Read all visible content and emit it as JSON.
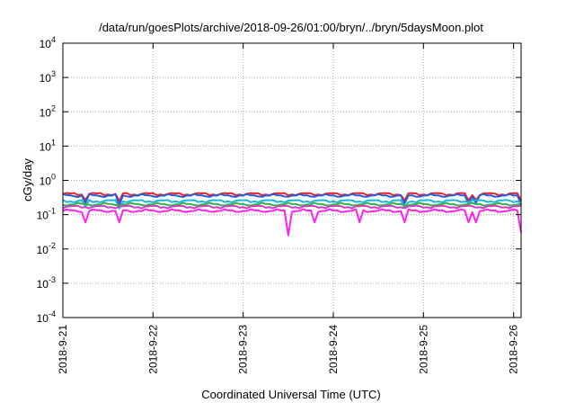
{
  "chart_data": {
    "type": "line",
    "title": "/data/run/goesPlots/archive/2018-09-26/01:00/bryn/../bryn/5daysMoon.plot",
    "xlabel": "Coordinated Universal Time (UTC)",
    "ylabel": "cGy/day",
    "y_scale": "log",
    "ylim": [
      0.0001,
      10000
    ],
    "xlim": [
      "2018-09-21T00:00",
      "2018-09-26T02:00"
    ],
    "grid": true,
    "y_ticks": [
      {
        "value": 0.0001,
        "base": "10",
        "exp": "-4"
      },
      {
        "value": 0.001,
        "base": "10",
        "exp": "-3"
      },
      {
        "value": 0.01,
        "base": "10",
        "exp": "-2"
      },
      {
        "value": 0.1,
        "base": "10",
        "exp": "-1"
      },
      {
        "value": 1,
        "base": "10",
        "exp": "0"
      },
      {
        "value": 10,
        "base": "10",
        "exp": "1"
      },
      {
        "value": 100,
        "base": "10",
        "exp": "2"
      },
      {
        "value": 1000,
        "base": "10",
        "exp": "3"
      },
      {
        "value": 10000,
        "base": "10",
        "exp": "4"
      }
    ],
    "x_ticks": [
      {
        "value": "2018-09-21T00:00",
        "label": "2018-9-21"
      },
      {
        "value": "2018-09-22T00:00",
        "label": "2018-9-22"
      },
      {
        "value": "2018-09-23T00:00",
        "label": "2018-9-23"
      },
      {
        "value": "2018-09-24T00:00",
        "label": "2018-9-24"
      },
      {
        "value": "2018-09-25T00:00",
        "label": "2018-9-25"
      },
      {
        "value": "2018-09-26T00:00",
        "label": "2018-9-26"
      }
    ],
    "series": [
      {
        "color": "#e8262b",
        "level": 0.4,
        "dips": [
          [
            "2018-09-21T06:00",
            0.27
          ],
          [
            "2018-09-21T15:00",
            0.25
          ],
          [
            "2018-09-24T19:00",
            0.26
          ],
          [
            "2018-09-25T12:00",
            0.26
          ],
          [
            "2018-09-25T14:00",
            0.27
          ],
          [
            "2018-09-26T02:00",
            0.26
          ]
        ]
      },
      {
        "color": "#2a5ad8",
        "level": 0.36,
        "dips": [
          [
            "2018-09-21T06:00",
            0.22
          ],
          [
            "2018-09-21T15:00",
            0.19
          ],
          [
            "2018-09-24T19:00",
            0.21
          ],
          [
            "2018-09-25T12:00",
            0.21
          ],
          [
            "2018-09-25T14:00",
            0.22
          ],
          [
            "2018-09-26T02:00",
            0.2
          ]
        ]
      },
      {
        "color": "#18b7d8",
        "level": 0.25,
        "dips": [
          [
            "2018-09-21T06:00",
            0.17
          ],
          [
            "2018-09-21T15:00",
            0.15
          ],
          [
            "2018-09-24T19:00",
            0.16
          ]
        ]
      },
      {
        "color": "#2fb34a",
        "level": 0.2,
        "dips": []
      },
      {
        "color": "#d43cc4",
        "level": 0.17,
        "dips": []
      },
      {
        "color": "#ff22ee",
        "level": 0.13,
        "dips": [
          [
            "2018-09-21T06:00",
            0.06
          ],
          [
            "2018-09-21T15:00",
            0.06
          ],
          [
            "2018-09-23T12:00",
            0.025
          ],
          [
            "2018-09-23T19:00",
            0.06
          ],
          [
            "2018-09-24T07:00",
            0.06
          ],
          [
            "2018-09-24T19:00",
            0.06
          ],
          [
            "2018-09-25T12:00",
            0.06
          ],
          [
            "2018-09-25T14:00",
            0.06
          ],
          [
            "2018-09-26T02:00",
            0.03
          ]
        ]
      }
    ]
  }
}
